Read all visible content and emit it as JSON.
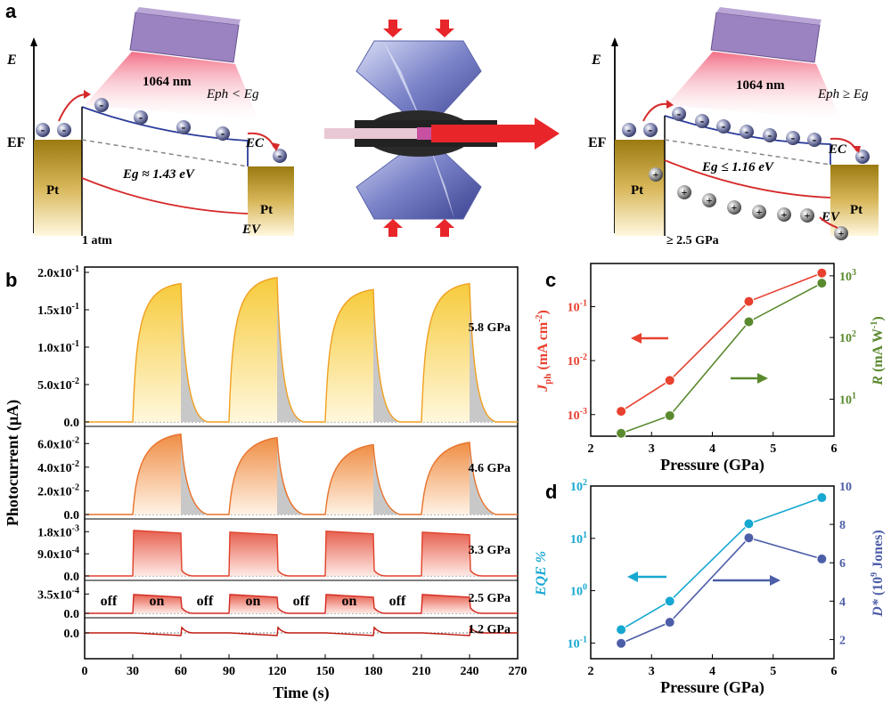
{
  "figure": {
    "panel_labels": {
      "a": "a",
      "b": "b",
      "c": "c",
      "d": "d"
    },
    "colors": {
      "red": "#e8412f",
      "green": "#5a8a2e",
      "cyan": "#17a8d1",
      "navy": "#4d5ea8",
      "orange": "#f0a020"
    }
  },
  "panel_a": {
    "axis_E": "E",
    "left": {
      "wavelength": "1064 nm",
      "photon_relation": "Eph < Eg",
      "ef_label": "EF",
      "ec_label": "EC",
      "ev_label": "EV",
      "bandgap": "Eg ≈ 1.43 eV",
      "electrode_left": "Pt",
      "electrode_right": "Pt",
      "pressure": "1 atm",
      "electron_sign": "-"
    },
    "right": {
      "wavelength": "1064 nm",
      "photon_relation": "Eph ≥ Eg",
      "ef_label": "EF",
      "ec_label": "EC",
      "ev_label": "EV",
      "bandgap": "Eg ≤ 1.16 eV",
      "electrode_left": "Pt",
      "electrode_right": "Pt",
      "pressure": "≥ 2.5 GPa",
      "electron_sign": "-",
      "hole_sign": "+"
    }
  },
  "chart_data": [
    {
      "id": "b",
      "type": "line",
      "title": "",
      "xlabel": "Time (s)",
      "ylabel": "Photocurrent (μA)",
      "xlim": [
        0,
        270
      ],
      "xticks": [
        "0",
        "30",
        "60",
        "90",
        "120",
        "150",
        "180",
        "210",
        "240",
        "270"
      ],
      "light_on_intervals": [
        [
          30,
          60
        ],
        [
          90,
          120
        ],
        [
          150,
          180
        ],
        [
          210,
          240
        ]
      ],
      "state_labels": [
        "off",
        "on",
        "off",
        "on",
        "off",
        "on",
        "off"
      ],
      "series": [
        {
          "name": "5.8 GPa",
          "ylim": [
            0,
            0.2
          ],
          "yticks": [
            "0.0",
            "5.0x10-2",
            "1.0x10-1",
            "1.5x10-1",
            "2.0x10-1"
          ],
          "peaks": [
            0.185,
            0.193,
            0.177,
            0.185
          ],
          "dark": 0.0
        },
        {
          "name": "4.6 GPa",
          "ylim": [
            0,
            0.07
          ],
          "yticks": [
            "0.0",
            "2.0x10-2",
            "4.0x10-2",
            "6.0x10-2"
          ],
          "peaks": [
            0.068,
            0.065,
            0.059,
            0.061
          ],
          "dark": 0.0
        },
        {
          "name": "3.3 GPa",
          "ylim": [
            0,
            0.0021
          ],
          "yticks": [
            "0.0",
            "9.0x10-4",
            "1.8x10-3"
          ],
          "peaks": [
            0.00185,
            0.00178,
            0.00182,
            0.00178
          ],
          "dark": 0.0
        },
        {
          "name": "2.5 GPa",
          "ylim": [
            0,
            0.0005
          ],
          "yticks": [
            "0.0",
            "3.5x10-4"
          ],
          "peaks": [
            0.00034,
            0.00034,
            0.00034,
            0.00034
          ],
          "dark": 0.0
        },
        {
          "name": "1.2 GPa",
          "ylim": [
            0,
            0.0005
          ],
          "yticks": [
            "0.0"
          ],
          "peaks": [
            0,
            0,
            0,
            0
          ],
          "dark": 0.0
        }
      ]
    },
    {
      "id": "c",
      "type": "line",
      "xlabel": "Pressure (GPa)",
      "xlim": [
        2,
        6
      ],
      "xticks": [
        "2",
        "3",
        "4",
        "5",
        "6"
      ],
      "left_ylabel": "Jph (mA cm-2)",
      "left_ylim_log10": [
        -3.4,
        -0.2
      ],
      "left_yticks": [
        "10-3",
        "10-2",
        "10-1"
      ],
      "right_ylabel": "R (mA W-1)",
      "right_ylim_log10": [
        0.4,
        3.2
      ],
      "right_yticks": [
        "101",
        "102",
        "103"
      ],
      "series": [
        {
          "name": "Jph",
          "axis": "left",
          "x": [
            2.5,
            3.3,
            4.6,
            5.8
          ],
          "y": [
            0.00115,
            0.0043,
            0.125,
            0.42
          ]
        },
        {
          "name": "R",
          "axis": "right",
          "x": [
            2.5,
            3.3,
            4.6,
            5.8
          ],
          "y": [
            2.8,
            5.4,
            180,
            760
          ]
        }
      ]
    },
    {
      "id": "d",
      "type": "line",
      "xlabel": "Pressure (GPa)",
      "xlim": [
        2,
        6
      ],
      "xticks": [
        "2",
        "3",
        "4",
        "5",
        "6"
      ],
      "left_ylabel": "EQE %",
      "left_ylim_log10": [
        -1.3,
        2
      ],
      "left_yticks": [
        "10-1",
        "100",
        "101",
        "102"
      ],
      "right_ylabel": "D* (109 Jones)",
      "right_ylim": [
        1,
        10
      ],
      "right_yticks": [
        "2",
        "4",
        "6",
        "8",
        "10"
      ],
      "series": [
        {
          "name": "EQE",
          "axis": "left",
          "x": [
            2.5,
            3.3,
            4.6,
            5.8
          ],
          "y": [
            0.18,
            0.63,
            19,
            60
          ]
        },
        {
          "name": "D*",
          "axis": "right",
          "x": [
            2.5,
            3.3,
            4.6,
            5.8
          ],
          "y": [
            1.8,
            2.9,
            7.3,
            6.2
          ]
        }
      ]
    }
  ]
}
